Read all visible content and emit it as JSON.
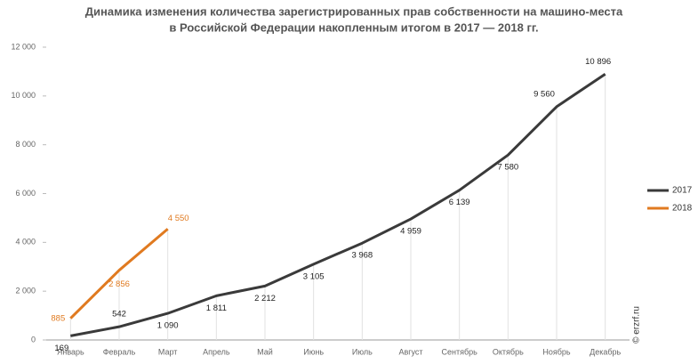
{
  "chart_data": {
    "type": "line",
    "title": [
      "Динамика изменения количества зарегистрированных прав собственности на машино-места",
      "в Российской Федерации накопленным итогом в 2017 — 2018 гг."
    ],
    "categories": [
      "Январь",
      "Февраль",
      "Март",
      "Апрель",
      "Май",
      "Июнь",
      "Июль",
      "Август",
      "Сентябрь",
      "Октябрь",
      "Ноябрь",
      "Декабрь"
    ],
    "series": [
      {
        "name": "2017",
        "color": "#3a3a3a",
        "values": [
          169,
          542,
          1090,
          1811,
          2212,
          3105,
          3968,
          4959,
          6139,
          7580,
          9560,
          10896
        ],
        "value_labels": [
          "169",
          "542",
          "1 090",
          "1 811",
          "2 212",
          "3 105",
          "3 968",
          "4 959",
          "6 139",
          "7 580",
          "9 560",
          "10 896"
        ]
      },
      {
        "name": "2018",
        "color": "#e07a20",
        "values": [
          885,
          2856,
          4550,
          null,
          null,
          null,
          null,
          null,
          null,
          null,
          null,
          null
        ],
        "value_labels": [
          "885",
          "2 856",
          "4 550",
          null,
          null,
          null,
          null,
          null,
          null,
          null,
          null,
          null
        ]
      }
    ],
    "ylim": [
      0,
      12000
    ],
    "yticks": [
      0,
      {
        "value": 2000,
        "label": "2 000"
      },
      {
        "value": 4000,
        "label": "4 000"
      },
      {
        "value": 6000,
        "label": "6 000"
      },
      {
        "value": 8000,
        "label": "8 000"
      },
      {
        "value": 10000,
        "label": "10 000"
      },
      {
        "value": 12000,
        "label": "12 000"
      }
    ],
    "watermark": "© erzrf.ru",
    "legend": "right"
  }
}
